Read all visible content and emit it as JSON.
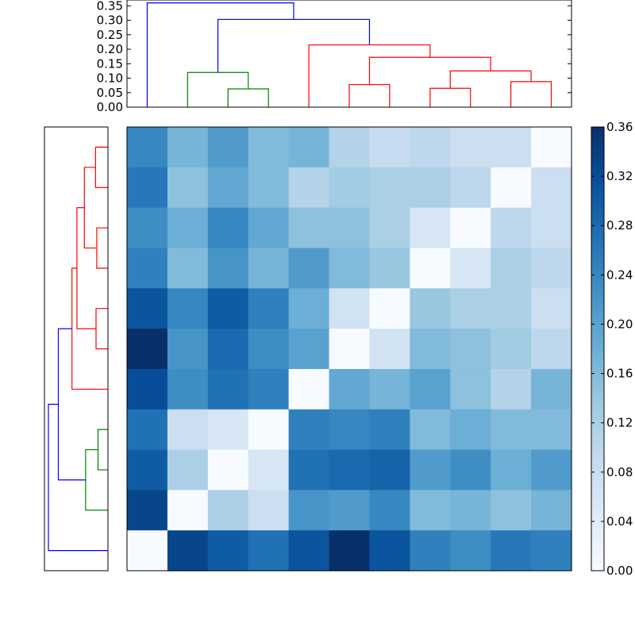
{
  "chart_data": [
    {
      "type": "dendrogram",
      "orientation": "top",
      "leaves": 11,
      "ylim": [
        0,
        0.37
      ],
      "yticks": [
        "0.00",
        "0.05",
        "0.10",
        "0.15",
        "0.20",
        "0.25",
        "0.30",
        "0.35"
      ],
      "ytick_values": [
        0,
        0.05,
        0.1,
        0.15,
        0.2,
        0.25,
        0.3,
        0.35
      ],
      "links": [
        {
          "left": 2.5,
          "right": 3.5,
          "left_h": 0,
          "right_h": 0,
          "height": 0.063,
          "color": "#008000"
        },
        {
          "left": 1.5,
          "right": 3.0,
          "left_h": 0,
          "right_h": 0.063,
          "height": 0.12,
          "color": "#008000"
        },
        {
          "left": 5.5,
          "right": 6.5,
          "left_h": 0,
          "right_h": 0,
          "height": 0.078,
          "color": "#ff0000"
        },
        {
          "left": 7.5,
          "right": 8.5,
          "left_h": 0,
          "right_h": 0,
          "height": 0.065,
          "color": "#ff0000"
        },
        {
          "left": 9.5,
          "right": 10.5,
          "left_h": 0,
          "right_h": 0,
          "height": 0.088,
          "color": "#ff0000"
        },
        {
          "left": 8.0,
          "right": 10.0,
          "left_h": 0.065,
          "right_h": 0.088,
          "height": 0.125,
          "color": "#ff0000"
        },
        {
          "left": 6.0,
          "right": 9.0,
          "left_h": 0.078,
          "right_h": 0.125,
          "height": 0.172,
          "color": "#ff0000"
        },
        {
          "left": 4.5,
          "right": 7.5,
          "left_h": 0,
          "right_h": 0.172,
          "height": 0.215,
          "color": "#ff0000"
        },
        {
          "left": 2.25,
          "right": 6.0,
          "left_h": 0.12,
          "right_h": 0.215,
          "height": 0.303,
          "color": "#0000ff"
        },
        {
          "left": 0.5,
          "right": 4.125,
          "left_h": 0,
          "right_h": 0.303,
          "height": 0.36,
          "color": "#0000ff"
        }
      ]
    },
    {
      "type": "dendrogram",
      "orientation": "left",
      "leaves": 11,
      "links": [
        {
          "a": 0.5,
          "b": 1.5,
          "a_h": 0,
          "b_h": 0,
          "height": 0.05,
          "color": "#ff0000"
        },
        {
          "a": 2.5,
          "b": 3.5,
          "a_h": 0,
          "b_h": 0,
          "height": 0.045,
          "color": "#ff0000"
        },
        {
          "a": 4.5,
          "b": 5.5,
          "a_h": 0,
          "b_h": 0,
          "height": 0.048,
          "color": "#ff0000"
        },
        {
          "a": 1.0,
          "b": 3.0,
          "a_h": 0.05,
          "b_h": 0.045,
          "height": 0.095,
          "color": "#ff0000"
        },
        {
          "a": 2.0,
          "b": 5.0,
          "a_h": 0.095,
          "b_h": 0.048,
          "height": 0.125,
          "color": "#ff0000"
        },
        {
          "a": 3.5,
          "b": 6.5,
          "a_h": 0.125,
          "b_h": 0,
          "height": 0.145,
          "color": "#ff0000"
        },
        {
          "a": 7.5,
          "b": 8.5,
          "a_h": 0,
          "b_h": 0,
          "height": 0.04,
          "color": "#008000"
        },
        {
          "a": 8.0,
          "b": 9.5,
          "a_h": 0.04,
          "b_h": 0,
          "height": 0.09,
          "color": "#008000"
        },
        {
          "a": 5.0,
          "b": 8.75,
          "a_h": 0.145,
          "b_h": 0.09,
          "height": 0.2,
          "color": "#0000ff"
        },
        {
          "a": 6.875,
          "b": 10.5,
          "a_h": 0.2,
          "b_h": 0,
          "height": 0.24,
          "color": "#0000ff"
        }
      ]
    },
    {
      "type": "heatmap",
      "rows": 11,
      "cols": 11,
      "vmin": 0,
      "vmax": 0.36,
      "colormap": "Blues",
      "values": [
        [
          0.24,
          0.17,
          0.21,
          0.16,
          0.17,
          0.11,
          0.09,
          0.1,
          0.08,
          0.08,
          0.0
        ],
        [
          0.26,
          0.15,
          0.19,
          0.16,
          0.11,
          0.13,
          0.12,
          0.12,
          0.1,
          0.0,
          0.08
        ],
        [
          0.23,
          0.18,
          0.24,
          0.19,
          0.15,
          0.15,
          0.12,
          0.06,
          0.0,
          0.1,
          0.08
        ],
        [
          0.25,
          0.16,
          0.22,
          0.17,
          0.21,
          0.16,
          0.14,
          0.0,
          0.06,
          0.12,
          0.1
        ],
        [
          0.31,
          0.24,
          0.3,
          0.25,
          0.18,
          0.07,
          0.0,
          0.14,
          0.12,
          0.12,
          0.08
        ],
        [
          0.36,
          0.22,
          0.28,
          0.23,
          0.2,
          0.0,
          0.07,
          0.16,
          0.15,
          0.13,
          0.1
        ],
        [
          0.32,
          0.23,
          0.27,
          0.25,
          0.0,
          0.19,
          0.17,
          0.2,
          0.15,
          0.11,
          0.17
        ],
        [
          0.27,
          0.08,
          0.06,
          0.0,
          0.25,
          0.24,
          0.25,
          0.16,
          0.18,
          0.16,
          0.16
        ],
        [
          0.3,
          0.12,
          0.0,
          0.06,
          0.27,
          0.28,
          0.29,
          0.21,
          0.23,
          0.18,
          0.21
        ],
        [
          0.33,
          0.0,
          0.12,
          0.08,
          0.22,
          0.21,
          0.24,
          0.16,
          0.17,
          0.15,
          0.17
        ],
        [
          0.0,
          0.33,
          0.3,
          0.27,
          0.31,
          0.36,
          0.31,
          0.25,
          0.23,
          0.26,
          0.25
        ]
      ]
    },
    {
      "type": "colorbar",
      "range": [
        0,
        0.36
      ],
      "colormap": "Blues",
      "tick_values": [
        0,
        0.04,
        0.08,
        0.12,
        0.16,
        0.2,
        0.24,
        0.28,
        0.32,
        0.36
      ],
      "tick_labels": [
        "0.00",
        "0.04",
        "0.08",
        "0.12",
        "0.16",
        "0.20",
        "0.24",
        "0.28",
        "0.32",
        "0.36"
      ]
    }
  ]
}
